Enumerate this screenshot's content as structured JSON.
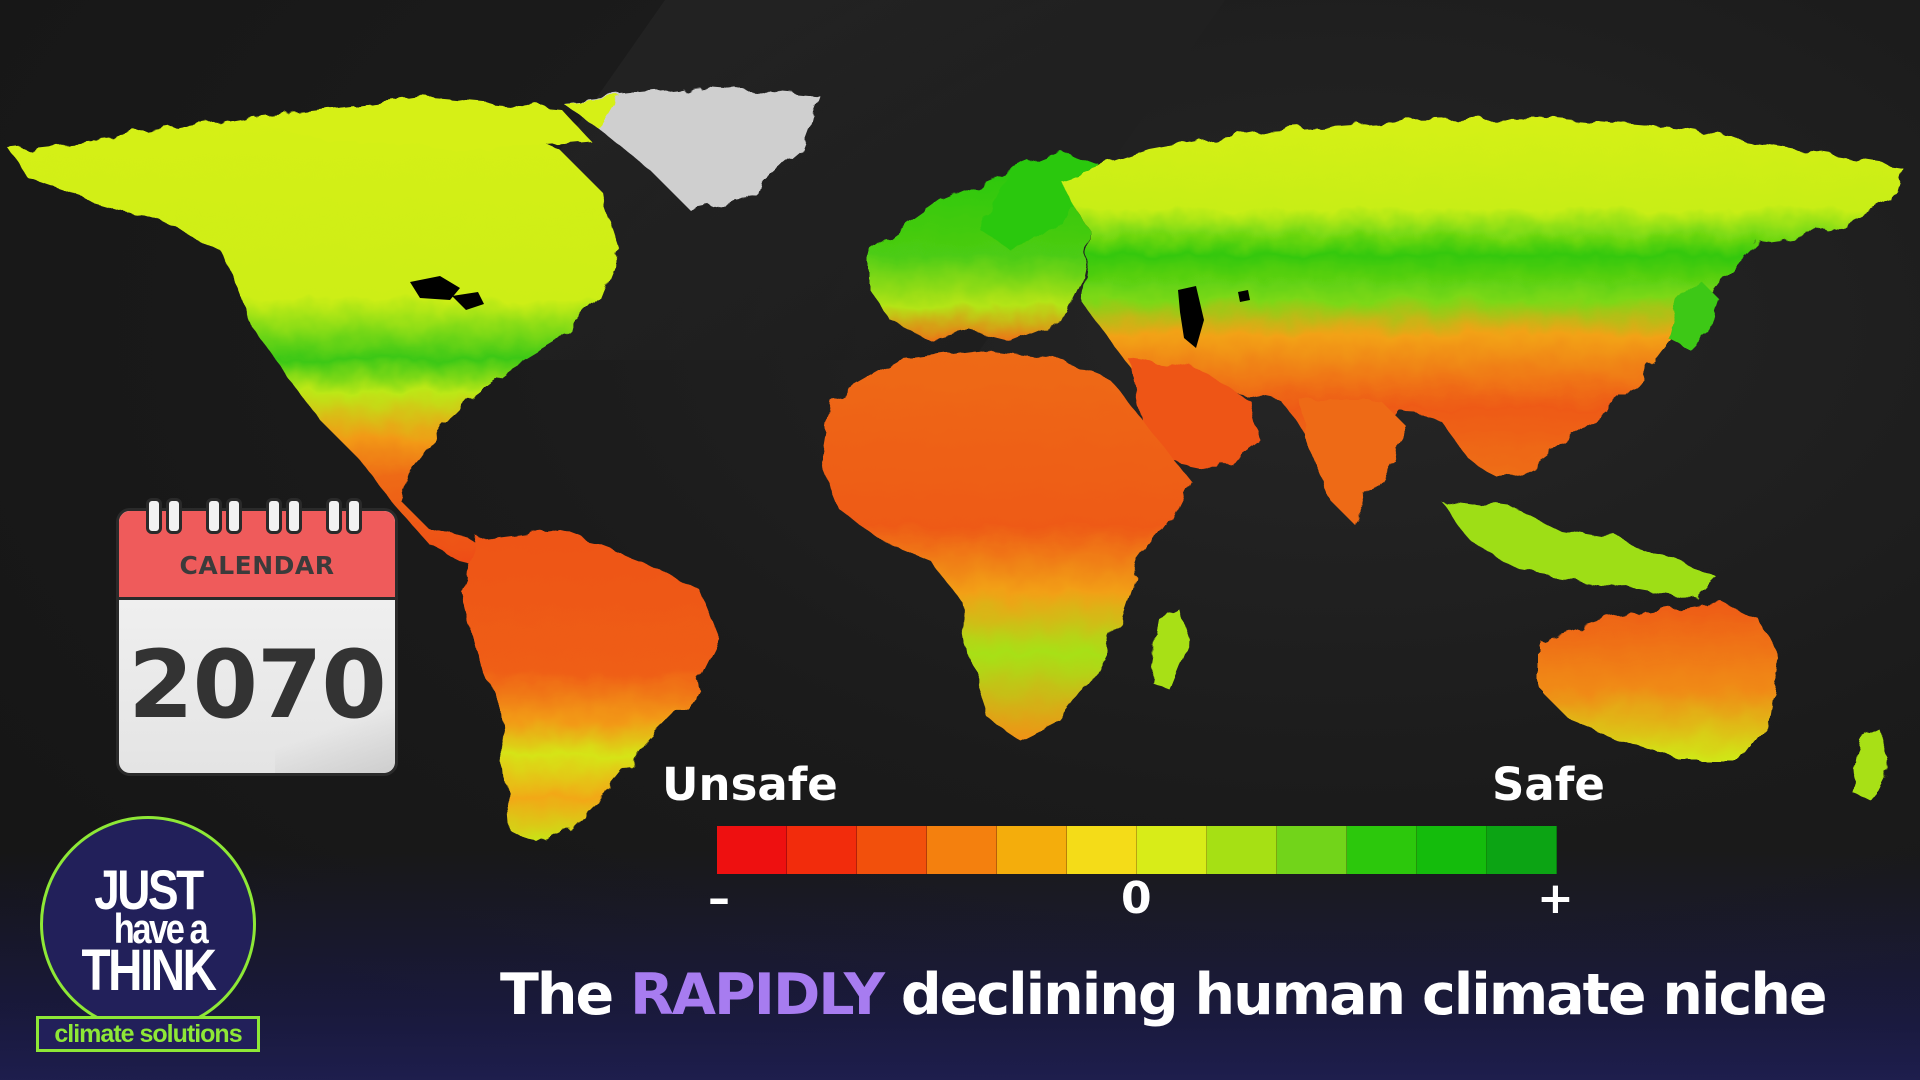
{
  "calendar": {
    "label": "CALENDAR",
    "year": "2070"
  },
  "legend": {
    "left_label": "Unsafe",
    "right_label": "Safe",
    "tick_minus": "–",
    "tick_zero": "0",
    "tick_plus": "+",
    "swatches": [
      "#ee1010",
      "#f22c0c",
      "#f2500c",
      "#f4800e",
      "#f4ad0c",
      "#f4dc18",
      "#d8ec18",
      "#a6e014",
      "#72d41a",
      "#2cc80c",
      "#14bc0c",
      "#0ca414"
    ]
  },
  "caption": {
    "before": "The ",
    "highlight": "RAPIDLY",
    "after": " declining human climate niche",
    "highlight_color": "#a77cf0"
  },
  "logo": {
    "line1": "JUST",
    "line2": "have a",
    "line3": "THINK",
    "tagline": "climate solutions",
    "accent_color": "#8ee836"
  },
  "map": {
    "colors": {
      "unsafe": "#ee4a14",
      "warm": "#f29a16",
      "neutral": "#d6f016",
      "safe": "#2cc80c",
      "ice": "#cfcfcf",
      "lakes": "#000000"
    }
  }
}
